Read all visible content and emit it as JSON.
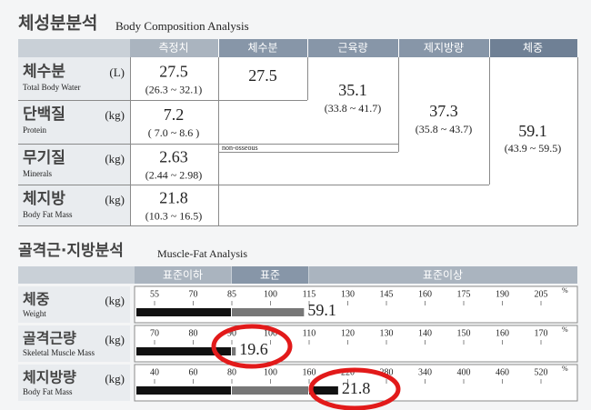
{
  "composition": {
    "title": "체성분분석",
    "subtitle": "Body Composition Analysis",
    "headers": [
      "측정치",
      "체수분",
      "근육량",
      "제지방량",
      "체중"
    ],
    "rows": [
      {
        "label": "체수분",
        "label_en": "Total Body Water",
        "unit": "(L)",
        "value": "27.5",
        "range": "(26.3 ~ 32.1)"
      },
      {
        "label": "단백질",
        "label_en": "Protein",
        "unit": "(kg)",
        "value": "7.2",
        "range": "( 7.0 ~ 8.6 )"
      },
      {
        "label": "무기질",
        "label_en": "Minerals",
        "unit": "(kg)",
        "value": "2.63",
        "range": "(2.44 ~ 2.98)"
      },
      {
        "label": "체지방",
        "label_en": "Body Fat Mass",
        "unit": "(kg)",
        "value": "21.8",
        "range": "(10.3 ~ 16.5)"
      }
    ],
    "totals": [
      {
        "value": "27.5"
      },
      {
        "value": "35.1",
        "range": "(33.8 ~ 41.7)"
      },
      {
        "value": "37.3",
        "range": "(35.8 ~ 43.7)"
      },
      {
        "value": "59.1",
        "range": "(43.9 ~ 59.5)"
      }
    ],
    "note": "non-osseous"
  },
  "muscle_fat": {
    "title": "골격근·지방분석",
    "subtitle": "Muscle-Fat Analysis",
    "headers": [
      "표준이하",
      "표준",
      "표준이상"
    ],
    "percent_sign": "%",
    "rows": [
      {
        "label": "체중",
        "label_en": "Weight",
        "unit": "(kg)",
        "ticks": [
          55,
          70,
          85,
          100,
          115,
          130,
          145,
          160,
          175,
          190,
          205
        ],
        "value": 59.1,
        "percent": 113
      },
      {
        "label": "골격근량",
        "label_en": "Skeletal Muscle Mass",
        "unit": "(kg)",
        "ticks": [
          70,
          80,
          90,
          100,
          110,
          120,
          130,
          140,
          150,
          160,
          170
        ],
        "value": 19.6,
        "percent": 91
      },
      {
        "label": "체지방량",
        "label_en": "Body Fat Mass",
        "unit": "(kg)",
        "ticks": [
          40,
          60,
          80,
          100,
          160,
          220,
          280,
          340,
          400,
          460,
          520
        ],
        "value": 21.8,
        "percent": 205
      }
    ]
  }
}
